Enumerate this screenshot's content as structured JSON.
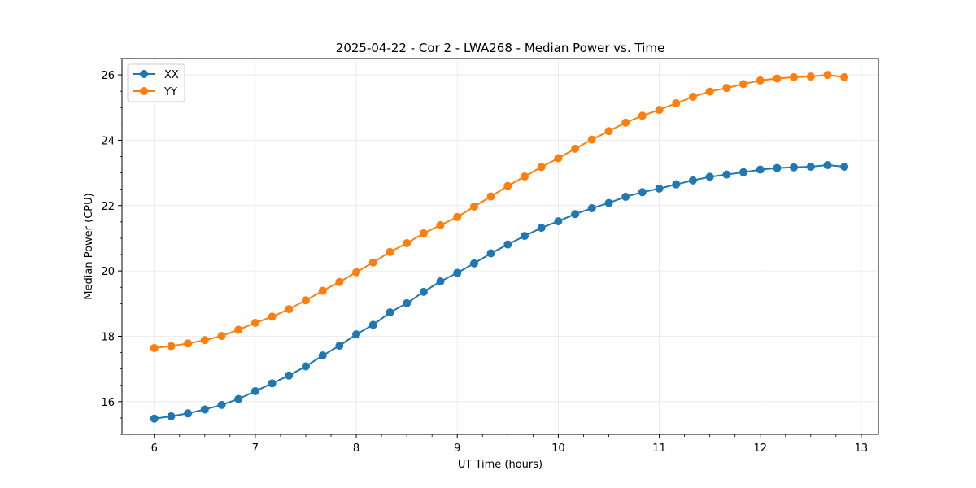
{
  "chart_data": {
    "type": "line",
    "title": "2025-04-22 - Cor 2 - LWA268 - Median Power vs. Time",
    "xlabel": "UT Time (hours)",
    "ylabel": "Median Power (CPU)",
    "xlim": [
      5.68,
      13.17
    ],
    "ylim": [
      15.0,
      26.5
    ],
    "xticks": [
      6,
      7,
      8,
      9,
      10,
      11,
      12,
      13
    ],
    "yticks": [
      16,
      18,
      20,
      22,
      24,
      26
    ],
    "grid": true,
    "legend_position": "top-left",
    "x": [
      6.0,
      6.167,
      6.333,
      6.5,
      6.667,
      6.833,
      7.0,
      7.167,
      7.333,
      7.5,
      7.667,
      7.833,
      8.0,
      8.167,
      8.333,
      8.5,
      8.667,
      8.833,
      9.0,
      9.167,
      9.333,
      9.5,
      9.667,
      9.833,
      10.0,
      10.167,
      10.333,
      10.5,
      10.667,
      10.833,
      11.0,
      11.167,
      11.333,
      11.5,
      11.667,
      11.833,
      12.0,
      12.167,
      12.333,
      12.5,
      12.667,
      12.833
    ],
    "series": [
      {
        "name": "XX",
        "color": "#1f77b4",
        "values": [
          15.48,
          15.55,
          15.64,
          15.76,
          15.9,
          16.08,
          16.32,
          16.56,
          16.8,
          17.08,
          17.41,
          17.71,
          18.06,
          18.35,
          18.73,
          19.01,
          19.36,
          19.68,
          19.94,
          20.23,
          20.54,
          20.81,
          21.07,
          21.32,
          21.52,
          21.74,
          21.92,
          22.08,
          22.27,
          22.41,
          22.52,
          22.65,
          22.77,
          22.88,
          22.95,
          23.02,
          23.1,
          23.15,
          23.17,
          23.19,
          23.24,
          23.19
        ]
      },
      {
        "name": "YY",
        "color": "#ff7f0e",
        "values": [
          17.64,
          17.7,
          17.78,
          17.88,
          18.01,
          18.2,
          18.41,
          18.6,
          18.83,
          19.1,
          19.39,
          19.66,
          19.96,
          20.26,
          20.58,
          20.85,
          21.15,
          21.4,
          21.65,
          21.97,
          22.28,
          22.6,
          22.89,
          23.18,
          23.45,
          23.74,
          24.02,
          24.28,
          24.54,
          24.75,
          24.93,
          25.13,
          25.33,
          25.49,
          25.6,
          25.72,
          25.83,
          25.89,
          25.93,
          25.95,
          26.0,
          25.93
        ]
      }
    ]
  }
}
